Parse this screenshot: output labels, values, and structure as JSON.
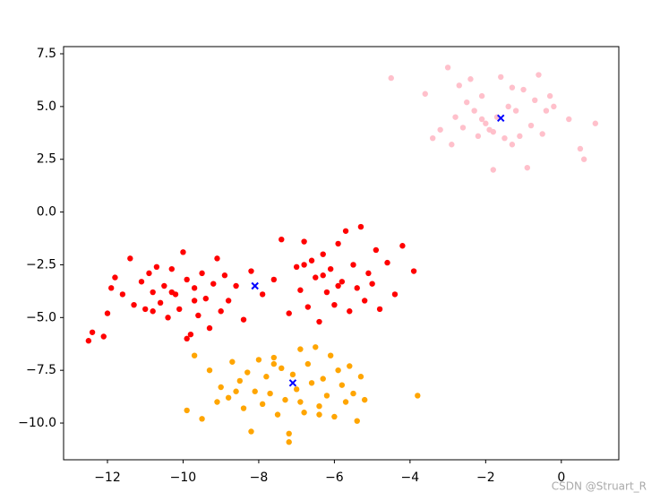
{
  "chart_data": {
    "type": "scatter",
    "xlim": [
      -13.16,
      1.52
    ],
    "ylim": [
      -11.74,
      7.84
    ],
    "xticks": [
      {
        "value": -12,
        "label": "−12"
      },
      {
        "value": -10,
        "label": "−10"
      },
      {
        "value": -8,
        "label": "−8"
      },
      {
        "value": -6,
        "label": "−6"
      },
      {
        "value": -4,
        "label": "−4"
      },
      {
        "value": -2,
        "label": "−2"
      },
      0
    ],
    "yticks": [
      {
        "value": -10,
        "label": "−10.0"
      },
      {
        "value": -7.5,
        "label": "−7.5"
      },
      {
        "value": -5,
        "label": "−5.0"
      },
      {
        "value": -2.5,
        "label": "−2.5"
      },
      {
        "value": 0,
        "label": "0.0"
      },
      2.5,
      {
        "value": 5,
        "label": "5.0"
      },
      7.5
    ],
    "grid": false,
    "series": [
      {
        "color": "pink",
        "marker": "o",
        "x": [
          -4.5,
          -3.6,
          -3.4,
          -3.2,
          -3.0,
          -2.9,
          -2.8,
          -2.7,
          -2.6,
          -2.5,
          -2.4,
          -2.3,
          -2.2,
          -2.1,
          -2.0,
          -1.9,
          -1.8,
          -1.7,
          -1.6,
          -1.5,
          -1.4,
          -1.3,
          -1.2,
          -1.1,
          -1.0,
          -0.9,
          -0.8,
          -0.7,
          -0.6,
          -0.5,
          -0.4,
          -0.3,
          -0.2,
          0.2,
          0.5,
          0.6,
          0.9,
          -1.8,
          -2.1,
          -1.3
        ],
        "y": [
          6.35,
          5.6,
          3.5,
          3.9,
          6.85,
          3.2,
          4.5,
          6.0,
          4.0,
          5.2,
          6.3,
          4.8,
          3.6,
          5.5,
          4.2,
          3.9,
          2.0,
          4.5,
          6.4,
          3.5,
          5.0,
          3.2,
          4.8,
          3.6,
          5.8,
          2.1,
          4.1,
          5.3,
          6.5,
          3.7,
          4.8,
          5.5,
          5.0,
          4.4,
          3.0,
          2.5,
          4.2,
          3.8,
          4.4,
          5.9
        ]
      },
      {
        "color": "red",
        "marker": "o",
        "x": [
          -12.5,
          -12.4,
          -12.1,
          -12.0,
          -11.8,
          -11.6,
          -11.4,
          -11.3,
          -11.1,
          -11.0,
          -10.9,
          -10.8,
          -10.7,
          -10.6,
          -10.5,
          -10.4,
          -10.3,
          -10.2,
          -10.1,
          -10.0,
          -9.9,
          -9.8,
          -9.7,
          -9.6,
          -9.5,
          -9.4,
          -9.3,
          -9.2,
          -9.1,
          -9.0,
          -8.9,
          -8.8,
          -8.6,
          -8.4,
          -8.2,
          -7.9,
          -7.6,
          -7.4,
          -7.2,
          -7.0,
          -6.9,
          -6.8,
          -6.7,
          -6.6,
          -6.5,
          -6.4,
          -6.3,
          -6.2,
          -6.1,
          -6.0,
          -5.9,
          -5.8,
          -5.7,
          -5.6,
          -5.5,
          -5.4,
          -5.3,
          -5.2,
          -5.1,
          -5.0,
          -4.9,
          -4.8,
          -4.6,
          -4.4,
          -4.2,
          -3.9,
          -11.9,
          -10.3,
          -9.7,
          -6.3,
          -6.8,
          -5.9,
          -9.9,
          -10.8
        ],
        "y": [
          -6.1,
          -5.7,
          -5.9,
          -4.8,
          -3.1,
          -3.9,
          -2.2,
          -4.4,
          -3.3,
          -4.6,
          -2.9,
          -3.8,
          -2.6,
          -4.3,
          -3.5,
          -5.0,
          -2.7,
          -3.9,
          -4.6,
          -1.9,
          -3.2,
          -5.8,
          -3.6,
          -4.9,
          -2.9,
          -4.1,
          -5.5,
          -3.4,
          -2.2,
          -4.7,
          -3.0,
          -4.2,
          -3.5,
          -5.1,
          -2.8,
          -3.9,
          -3.2,
          -1.3,
          -4.8,
          -2.6,
          -3.7,
          -1.4,
          -4.5,
          -2.3,
          -3.1,
          -5.2,
          -2.0,
          -3.8,
          -2.7,
          -4.4,
          -1.5,
          -3.3,
          -0.9,
          -4.7,
          -2.5,
          -3.6,
          -0.7,
          -4.2,
          -2.9,
          -3.4,
          -1.8,
          -4.6,
          -2.4,
          -3.9,
          -1.6,
          -2.8,
          -3.6,
          -3.8,
          -4.2,
          -3.0,
          -2.5,
          -3.5,
          -6.0,
          -4.7
        ]
      },
      {
        "color": "orange",
        "marker": "o",
        "x": [
          -9.9,
          -9.7,
          -9.5,
          -9.3,
          -9.1,
          -9.0,
          -8.8,
          -8.7,
          -8.5,
          -8.4,
          -8.3,
          -8.2,
          -8.1,
          -8.0,
          -7.9,
          -7.8,
          -7.7,
          -7.6,
          -7.5,
          -7.4,
          -7.3,
          -7.2,
          -7.1,
          -7.0,
          -6.9,
          -6.8,
          -6.7,
          -6.6,
          -6.5,
          -6.4,
          -6.3,
          -6.2,
          -6.1,
          -6.0,
          -5.9,
          -5.8,
          -5.7,
          -5.6,
          -5.5,
          -5.4,
          -5.3,
          -5.2,
          -3.8,
          -7.2,
          -6.9,
          -7.6,
          -8.6,
          -6.4
        ],
        "y": [
          -9.4,
          -6.8,
          -9.8,
          -7.5,
          -9.0,
          -8.3,
          -8.8,
          -7.1,
          -8.0,
          -9.3,
          -7.6,
          -10.4,
          -8.5,
          -7.0,
          -9.1,
          -7.8,
          -8.6,
          -6.9,
          -9.6,
          -7.4,
          -8.9,
          -10.9,
          -7.7,
          -8.4,
          -6.5,
          -9.5,
          -7.2,
          -8.1,
          -6.4,
          -9.2,
          -7.9,
          -8.7,
          -6.8,
          -9.7,
          -7.5,
          -8.2,
          -9.0,
          -7.3,
          -8.6,
          -9.9,
          -7.8,
          -8.9,
          -8.7,
          -10.5,
          -9.0,
          -7.2,
          -8.5,
          -9.6
        ]
      },
      {
        "color": "blue",
        "marker": "x",
        "x": [
          -1.6,
          -8.1,
          -7.1
        ],
        "y": [
          4.45,
          -3.5,
          -8.1
        ]
      }
    ],
    "watermark": "CSDN @Struart_R"
  }
}
